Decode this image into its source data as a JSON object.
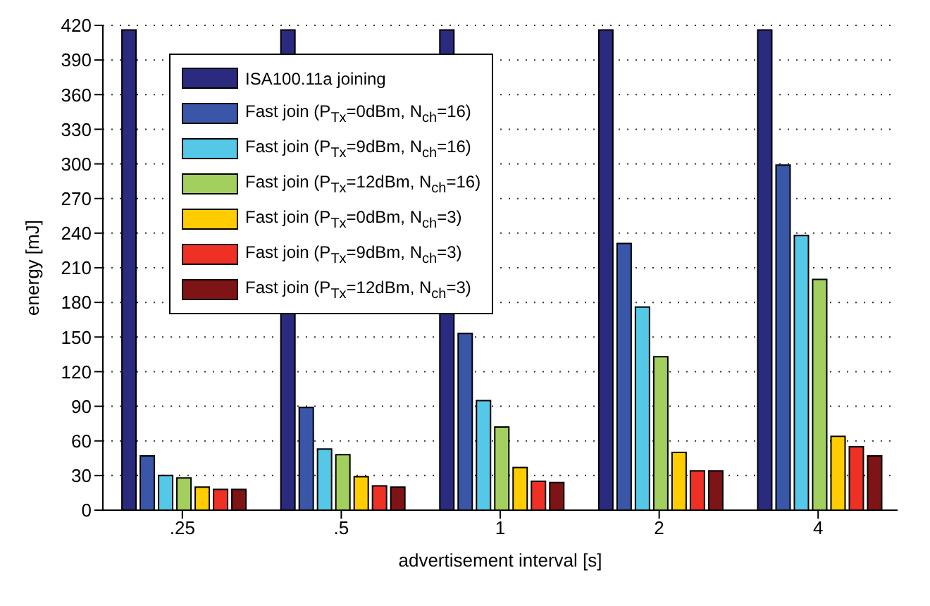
{
  "chart_data": {
    "type": "bar",
    "xlabel": "advertisement interval [s]",
    "ylabel": "energy [mJ]",
    "categories": [
      ".25",
      ".5",
      "1",
      "2",
      "4"
    ],
    "series": [
      {
        "name": "ISA100.11a joining",
        "color": "#2a2a7e",
        "values": [
          416,
          416,
          416,
          416,
          416
        ]
      },
      {
        "name": "Fast join (P$_{Tx}$=0dBm, N$_{ch}$=16)",
        "color": "#3a56a8",
        "values": [
          47,
          89,
          153,
          231,
          299
        ]
      },
      {
        "name": "Fast join (P$_{Tx}$=9dBm, N$_{ch}$=16)",
        "color": "#55c8e8",
        "values": [
          30,
          53,
          95,
          176,
          238
        ]
      },
      {
        "name": "Fast join (P$_{Tx}$=12dBm, N$_{ch}$=16)",
        "color": "#a3cf5f",
        "values": [
          28,
          48,
          72,
          133,
          200
        ]
      },
      {
        "name": "Fast join (P$_{Tx}$=0dBm, N$_{ch}$=3)",
        "color": "#ffcc00",
        "values": [
          20,
          29,
          37,
          50,
          64
        ]
      },
      {
        "name": "Fast join (P$_{Tx}$=9dBm, N$_{ch}$=3)",
        "color": "#ee3124",
        "values": [
          18,
          21,
          25,
          34,
          55
        ]
      },
      {
        "name": "Fast join (P$_{Tx}$=12dBm, N$_{ch}$=3)",
        "color": "#7f1416",
        "values": [
          18,
          20,
          24,
          34,
          47
        ]
      }
    ],
    "ylim": [
      0,
      420
    ],
    "yticks": [
      0,
      30,
      60,
      90,
      120,
      150,
      180,
      210,
      240,
      270,
      300,
      330,
      360,
      390,
      420
    ],
    "grid": "y",
    "legend": "top left"
  }
}
